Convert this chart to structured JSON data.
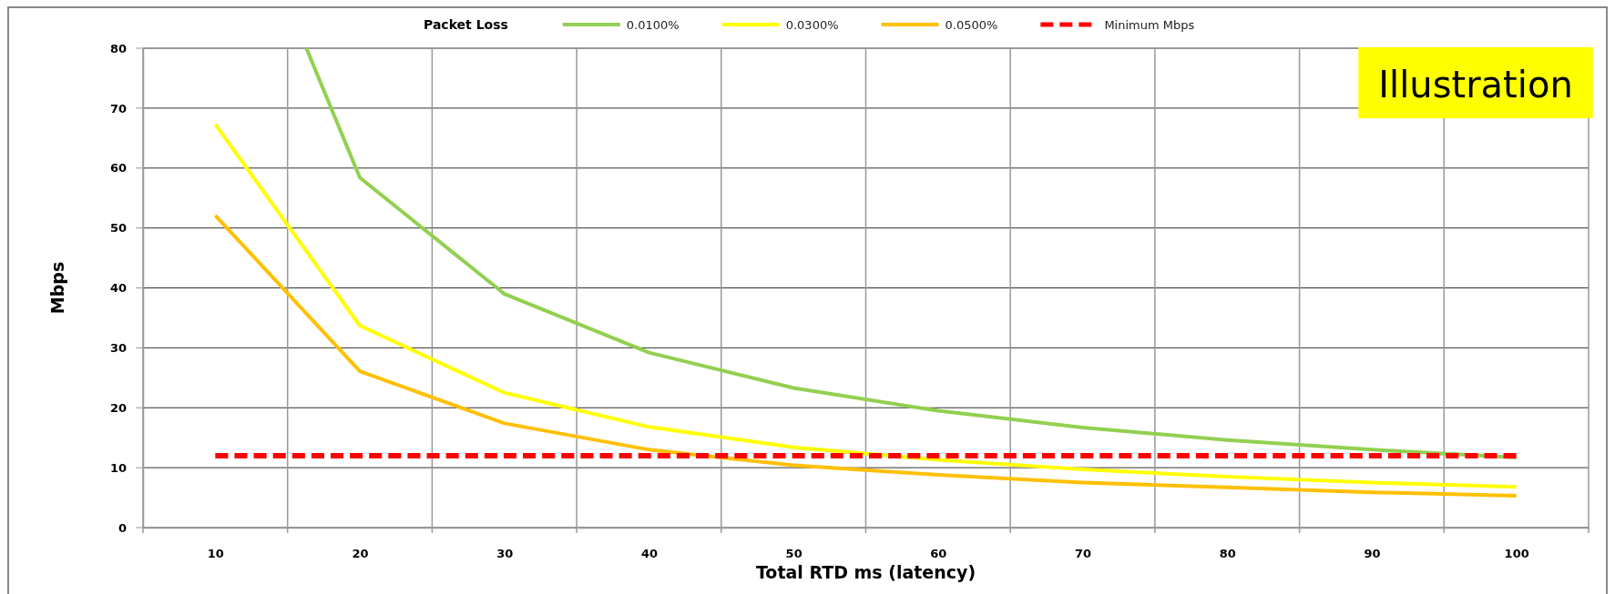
{
  "chart_data": {
    "type": "line",
    "xlabel": "Total RTD ms (latency)",
    "ylabel": "Mbps",
    "legend_title": "Packet Loss",
    "xlim": [
      5,
      105
    ],
    "xticks": [
      {
        "value": 5,
        "label": null
      },
      {
        "value": 10,
        "label": "10"
      },
      {
        "value": 15,
        "label": null
      },
      {
        "value": 20,
        "label": "20"
      },
      {
        "value": 25,
        "label": null
      },
      {
        "value": 30,
        "label": "30"
      },
      {
        "value": 35,
        "label": null
      },
      {
        "value": 40,
        "label": "40"
      },
      {
        "value": 45,
        "label": null
      },
      {
        "value": 50,
        "label": "50"
      },
      {
        "value": 55,
        "label": null
      },
      {
        "value": 60,
        "label": "60"
      },
      {
        "value": 65,
        "label": null
      },
      {
        "value": 70,
        "label": "70"
      },
      {
        "value": 75,
        "label": null
      },
      {
        "value": 80,
        "label": "80"
      },
      {
        "value": 85,
        "label": null
      },
      {
        "value": 90,
        "label": "90"
      },
      {
        "value": 95,
        "label": null
      },
      {
        "value": 100,
        "label": "100"
      },
      {
        "value": 105,
        "label": null
      }
    ],
    "ylim": [
      0,
      80
    ],
    "yticks": [
      0,
      10,
      20,
      30,
      40,
      50,
      60,
      70,
      80
    ],
    "series": [
      {
        "name": "0.0100%",
        "color": "#92d050",
        "x": [
          16.3,
          20,
          30,
          40,
          50,
          60,
          70,
          80,
          90,
          100
        ],
        "values": [
          80,
          58.4,
          39,
          29.2,
          23.3,
          19.5,
          16.7,
          14.6,
          13,
          11.7
        ]
      },
      {
        "name": "0.0300%",
        "color": "#ffff00",
        "x": [
          10,
          20,
          30,
          40,
          50,
          60,
          70,
          80,
          90,
          100
        ],
        "values": [
          67.3,
          33.7,
          22.5,
          16.8,
          13.4,
          11.3,
          9.7,
          8.5,
          7.5,
          6.8
        ]
      },
      {
        "name": "0.0500%",
        "color": "#ffc000",
        "x": [
          10,
          20,
          30,
          40,
          50,
          60,
          70,
          80,
          90,
          100
        ],
        "values": [
          52.1,
          26.1,
          17.4,
          13,
          10.4,
          8.8,
          7.5,
          6.7,
          5.9,
          5.3
        ]
      },
      {
        "name": "Minimum Mbps",
        "color": "#ff0000",
        "line_style": "dashed",
        "x": [
          10,
          20,
          30,
          40,
          50,
          60,
          70,
          80,
          90,
          100
        ],
        "values": [
          12,
          12,
          12,
          12,
          12,
          12,
          12,
          12,
          12,
          12
        ]
      }
    ],
    "grid": true,
    "legend": "top",
    "marker": "none",
    "line_style": "solid",
    "annotations": [
      "Illustration"
    ]
  }
}
